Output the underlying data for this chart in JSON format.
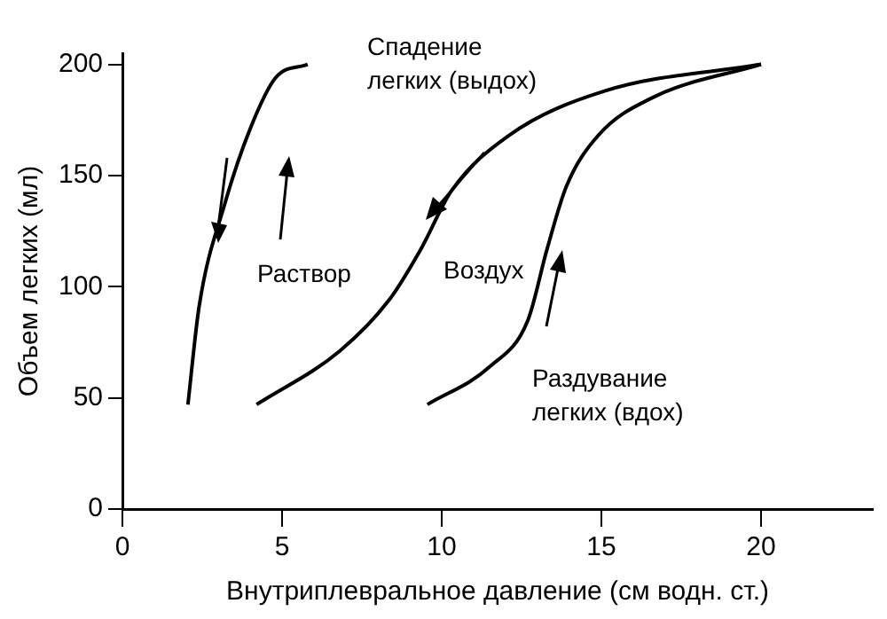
{
  "chart_data": {
    "type": "line",
    "xlabel": "Внутриплевральное давление (см водн. ст.)",
    "ylabel": "Объем легких (мл)",
    "xlim": [
      0,
      23.5
    ],
    "xticks": [
      0,
      5,
      10,
      15,
      20
    ],
    "ylim": [
      0,
      205
    ],
    "yticks": [
      0,
      50,
      100,
      150,
      200
    ],
    "grid": false,
    "legend": false,
    "marker": "none",
    "line_style": "solid",
    "series": [
      {
        "color": "#000000",
        "x": [
          2.05,
          2.4,
          3.2,
          4.0,
          4.8,
          5.8
        ],
        "values": [
          47,
          91,
          137,
          171,
          194,
          200
        ]
      },
      {
        "color": "#000000",
        "x": [
          4.2,
          6.8,
          8.35,
          9.35,
          10.3,
          12.1,
          15.1,
          20
        ],
        "values": [
          47,
          71,
          94,
          117,
          143,
          168,
          188,
          200
        ]
      },
      {
        "color": "#000000",
        "x": [
          9.55,
          11.5,
          12.7,
          13.3,
          13.9,
          14.9,
          16.6,
          20
        ],
        "values": [
          47,
          64,
          85,
          117,
          145,
          168,
          185,
          200
        ]
      }
    ],
    "annotations": [
      "Спадение\nлегких (выдох)",
      "Раствор",
      "Воздух",
      "Раздувание\nлегких (вдох)"
    ]
  }
}
